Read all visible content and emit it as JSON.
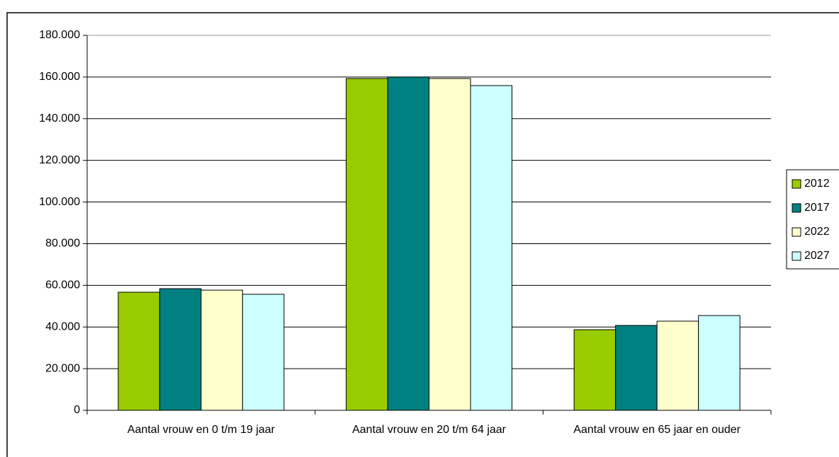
{
  "chart_data": {
    "type": "bar",
    "categories": [
      "Aantal vrouw en 0 t/m 19 jaar",
      "Aantal vrouw en 20 t/m 64 jaar",
      "Aantal vrouw en 65 jaar en ouder"
    ],
    "series": [
      {
        "name": "2012",
        "color": "#99cc00",
        "values": [
          56700,
          159300,
          38700
        ]
      },
      {
        "name": "2017",
        "color": "#008080",
        "values": [
          58400,
          160000,
          40750
        ]
      },
      {
        "name": "2022",
        "color": "#ffffcc",
        "values": [
          57700,
          159300,
          42800
        ]
      },
      {
        "name": "2027",
        "color": "#ccffff",
        "values": [
          55700,
          155900,
          45500
        ]
      }
    ],
    "ylim": [
      0,
      180000
    ],
    "yticks": [
      0,
      {
        "value": 20000,
        "label": "20.000"
      },
      {
        "value": 40000,
        "label": "40.000"
      },
      {
        "value": 60000,
        "label": "60.000"
      },
      {
        "value": 80000,
        "label": "80.000"
      },
      {
        "value": 100000,
        "label": "100.000"
      },
      {
        "value": 120000,
        "label": "120.000"
      },
      {
        "value": 140000,
        "label": "140.000"
      },
      {
        "value": 160000,
        "label": "160.000"
      },
      {
        "value": 180000,
        "label": "180.000"
      }
    ],
    "grid": true,
    "legend": "right"
  }
}
